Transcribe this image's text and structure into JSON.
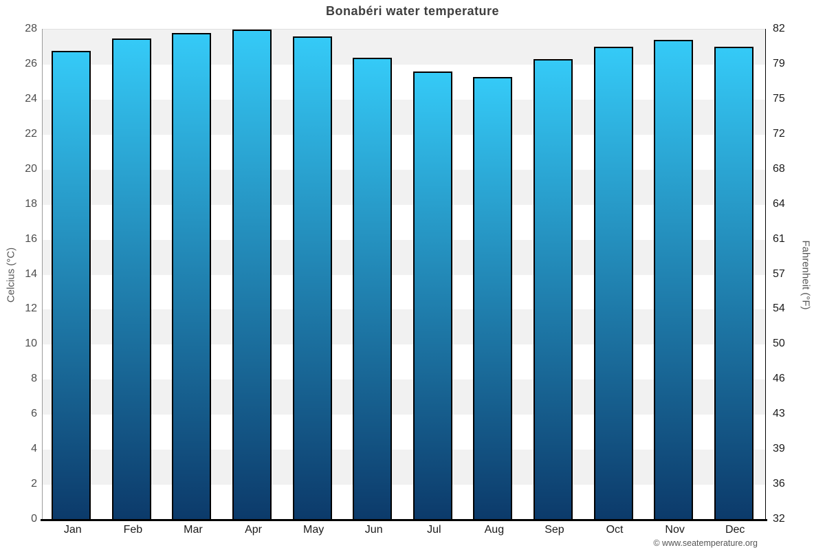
{
  "title": "Bonabéri water temperature",
  "axes": {
    "left_label": "Celcius (°C)",
    "right_label": "Fahrenheit (°F)",
    "celsius_ticks": [
      0,
      2,
      4,
      6,
      8,
      10,
      12,
      14,
      16,
      18,
      20,
      22,
      24,
      26,
      28
    ],
    "fahrenheit_ticks": [
      32,
      36,
      39,
      43,
      46,
      50,
      54,
      57,
      61,
      64,
      68,
      72,
      75,
      79,
      82
    ]
  },
  "footer": {
    "copyright": "© www.seatemperature.org"
  },
  "chart_data": {
    "type": "bar",
    "title": "Bonabéri water temperature",
    "categories": [
      "Jan",
      "Feb",
      "Mar",
      "Apr",
      "May",
      "Jun",
      "Jul",
      "Aug",
      "Sep",
      "Oct",
      "Nov",
      "Dec"
    ],
    "values": [
      26.8,
      27.5,
      27.8,
      28.0,
      27.6,
      26.4,
      25.6,
      25.3,
      26.3,
      27.0,
      27.4,
      27.0
    ],
    "unit": "°C",
    "xlabel": "",
    "ylabel": "Celcius (°C)",
    "y2label": "Fahrenheit (°F)",
    "ylim": [
      0,
      28
    ],
    "y2lim": [
      32,
      82.4
    ],
    "grid": "alternating-horizontal-bands",
    "legend": "none",
    "colors": {
      "bar_gradient_top": "#35caf7",
      "bar_gradient_bottom": "#0c3a6a",
      "bar_border": "#000000",
      "band_gray": "#f1f1f1",
      "band_white": "#ffffff",
      "title_text": "#3e3e3e",
      "tick_text": "#4d4d4d",
      "axis_line": "#000000"
    }
  }
}
